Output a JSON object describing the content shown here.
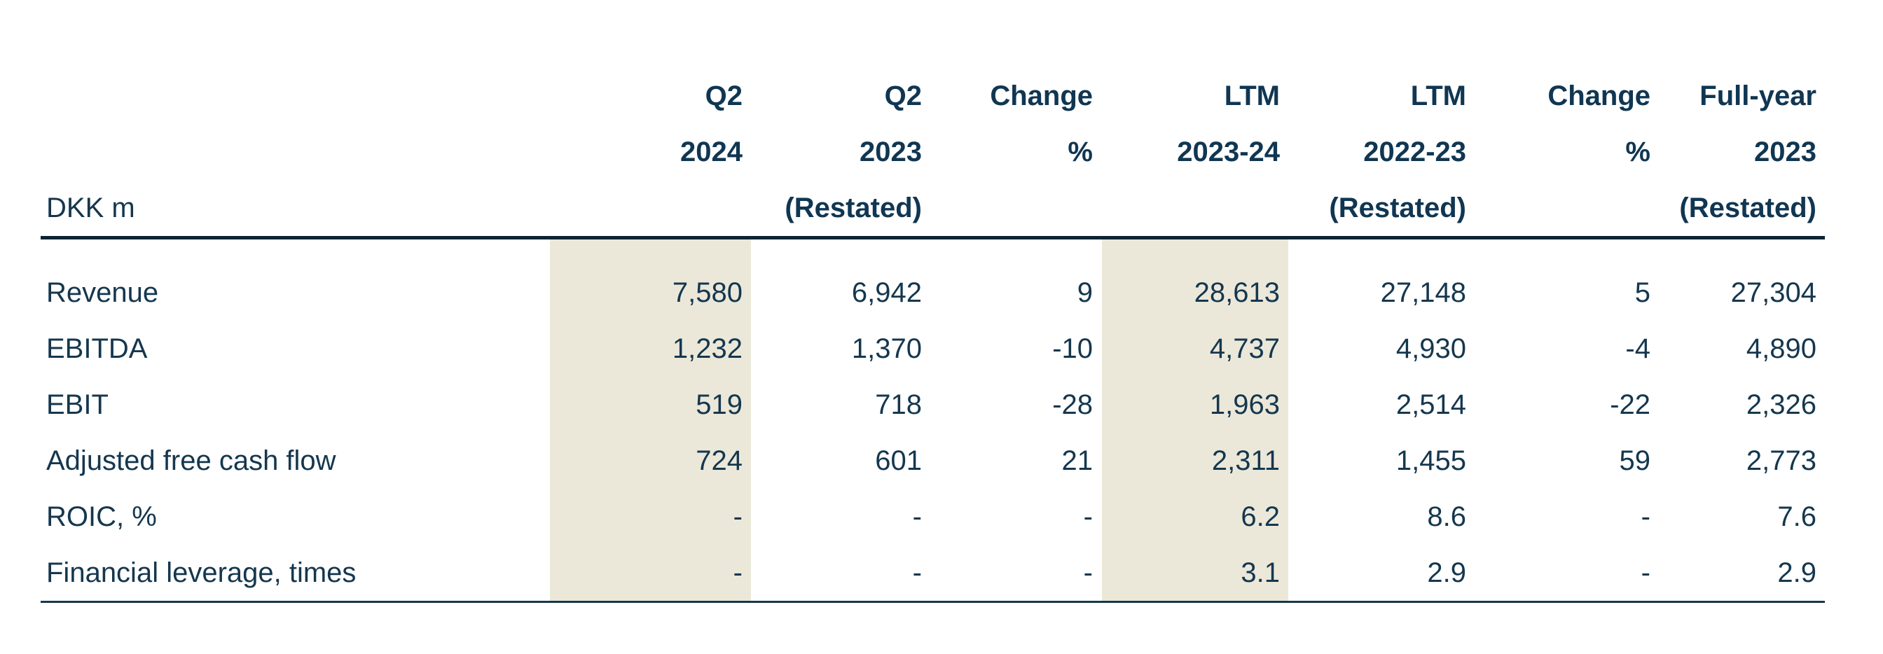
{
  "table": {
    "unit_label": "DKK m",
    "text_color": "#15374e",
    "highlight_color": "#ebe8da",
    "rule_color": "#0d2333",
    "columns": [
      {
        "id": "metric",
        "line1": "",
        "line2": "",
        "line3": "DKK m"
      },
      {
        "id": "q2-2024",
        "line1": "Q2",
        "line2": "2024",
        "line3": "",
        "highlighted": true
      },
      {
        "id": "q2-2023",
        "line1": "Q2",
        "line2": "2023",
        "line3": "(Restated)"
      },
      {
        "id": "change-pct-qtr",
        "line1": "Change",
        "line2": "%",
        "line3": ""
      },
      {
        "id": "ltm-2023-24",
        "line1": "LTM",
        "line2": "2023-24",
        "line3": "",
        "highlighted": true
      },
      {
        "id": "ltm-2022-23",
        "line1": "LTM",
        "line2": "2022-23",
        "line3": "(Restated)"
      },
      {
        "id": "change-pct-ltm",
        "line1": "Change",
        "line2": "%",
        "line3": ""
      },
      {
        "id": "full-year-2023",
        "line1": "Full-year",
        "line2": "2023",
        "line3": "(Restated)"
      }
    ],
    "rows": [
      {
        "label": "Revenue",
        "values": [
          "7,580",
          "6,942",
          "9",
          "28,613",
          "27,148",
          "5",
          "27,304"
        ]
      },
      {
        "label": "EBITDA",
        "values": [
          "1,232",
          "1,370",
          "-10",
          "4,737",
          "4,930",
          "-4",
          "4,890"
        ]
      },
      {
        "label": "EBIT",
        "values": [
          "519",
          "718",
          "-28",
          "1,963",
          "2,514",
          "-22",
          "2,326"
        ]
      },
      {
        "label": "Adjusted free cash flow",
        "values": [
          "724",
          "601",
          "21",
          "2,311",
          "1,455",
          "59",
          "2,773"
        ]
      },
      {
        "label": "ROIC, %",
        "values": [
          "-",
          "-",
          "-",
          "6.2",
          "8.6",
          "-",
          "7.6"
        ]
      },
      {
        "label": "Financial leverage, times",
        "values": [
          "-",
          "-",
          "-",
          "3.1",
          "2.9",
          "-",
          "2.9"
        ]
      }
    ]
  }
}
